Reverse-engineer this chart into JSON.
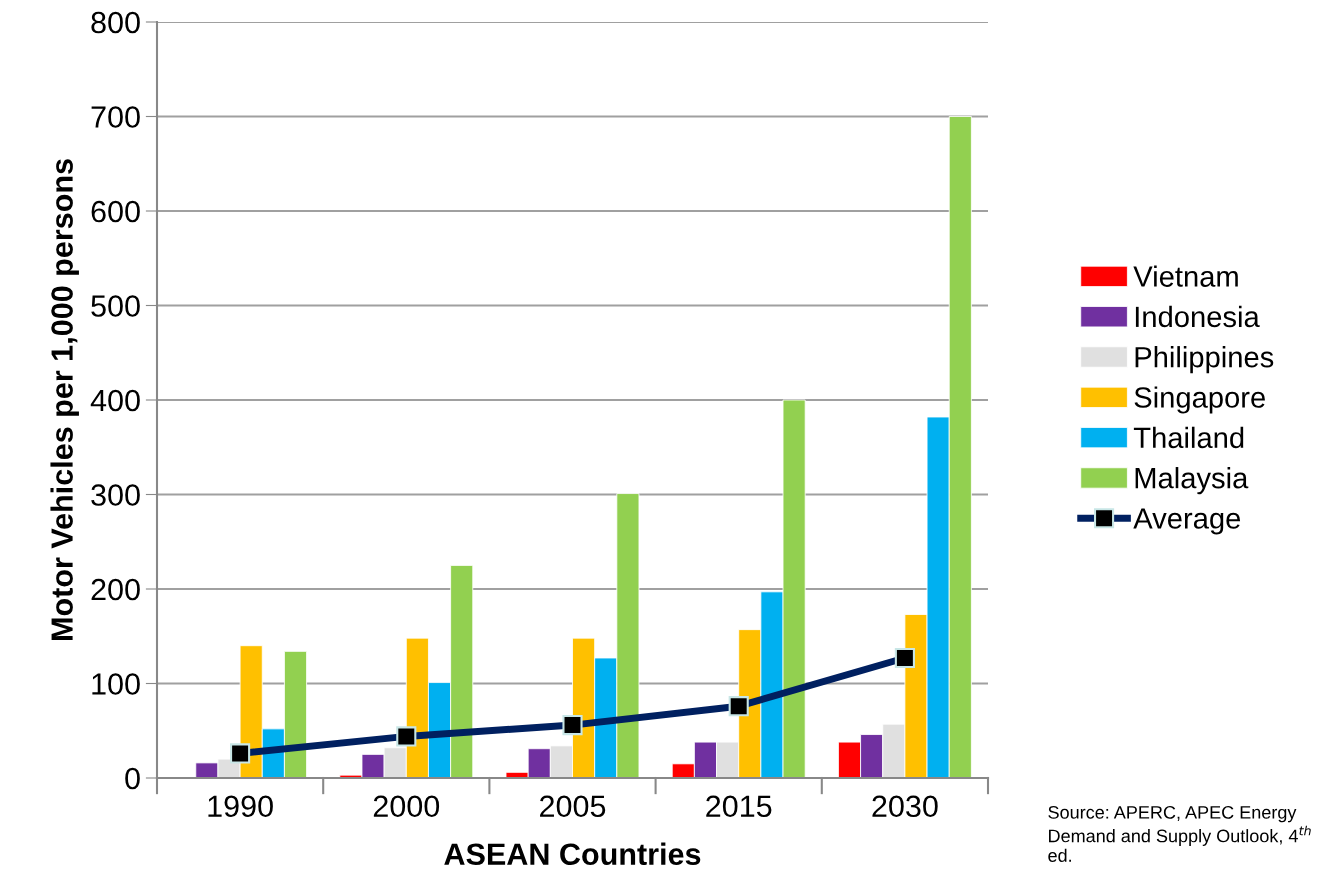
{
  "chart_data": {
    "type": "bar",
    "xlabel": "ASEAN Countries",
    "ylabel": "Motor Vehicles per 1,000 persons",
    "categories": [
      "1990",
      "2000",
      "2005",
      "2015",
      "2030"
    ],
    "series": [
      {
        "name": "Vietnam",
        "color": "#ff0000",
        "values": [
          null,
          3,
          6,
          15,
          38
        ]
      },
      {
        "name": "Indonesia",
        "color": "#7030a0",
        "values": [
          16,
          25,
          31,
          38,
          46
        ]
      },
      {
        "name": "Philippines",
        "color": "#e0e0e0",
        "values": [
          20,
          32,
          34,
          38,
          57
        ]
      },
      {
        "name": "Singapore",
        "color": "#ffc000",
        "values": [
          140,
          148,
          148,
          157,
          173
        ]
      },
      {
        "name": "Thailand",
        "color": "#00b0f0",
        "values": [
          52,
          101,
          127,
          197,
          382
        ]
      },
      {
        "name": "Malaysia",
        "color": "#92d050",
        "values": [
          134,
          225,
          301,
          400,
          700
        ]
      },
      {
        "name": "Average",
        "type": "line",
        "color": "#002060",
        "marker": "square",
        "values": [
          26,
          44,
          56,
          76,
          127
        ]
      }
    ],
    "ylim": [
      0,
      800
    ],
    "yticks": [
      0,
      100,
      200,
      300,
      400,
      500,
      600,
      700,
      800
    ],
    "grid": "y",
    "legend": "right",
    "annotations": [
      "Source: APERC, APEC Energy Demand and Supply Outlook, 4$^{th}$ ed."
    ]
  }
}
